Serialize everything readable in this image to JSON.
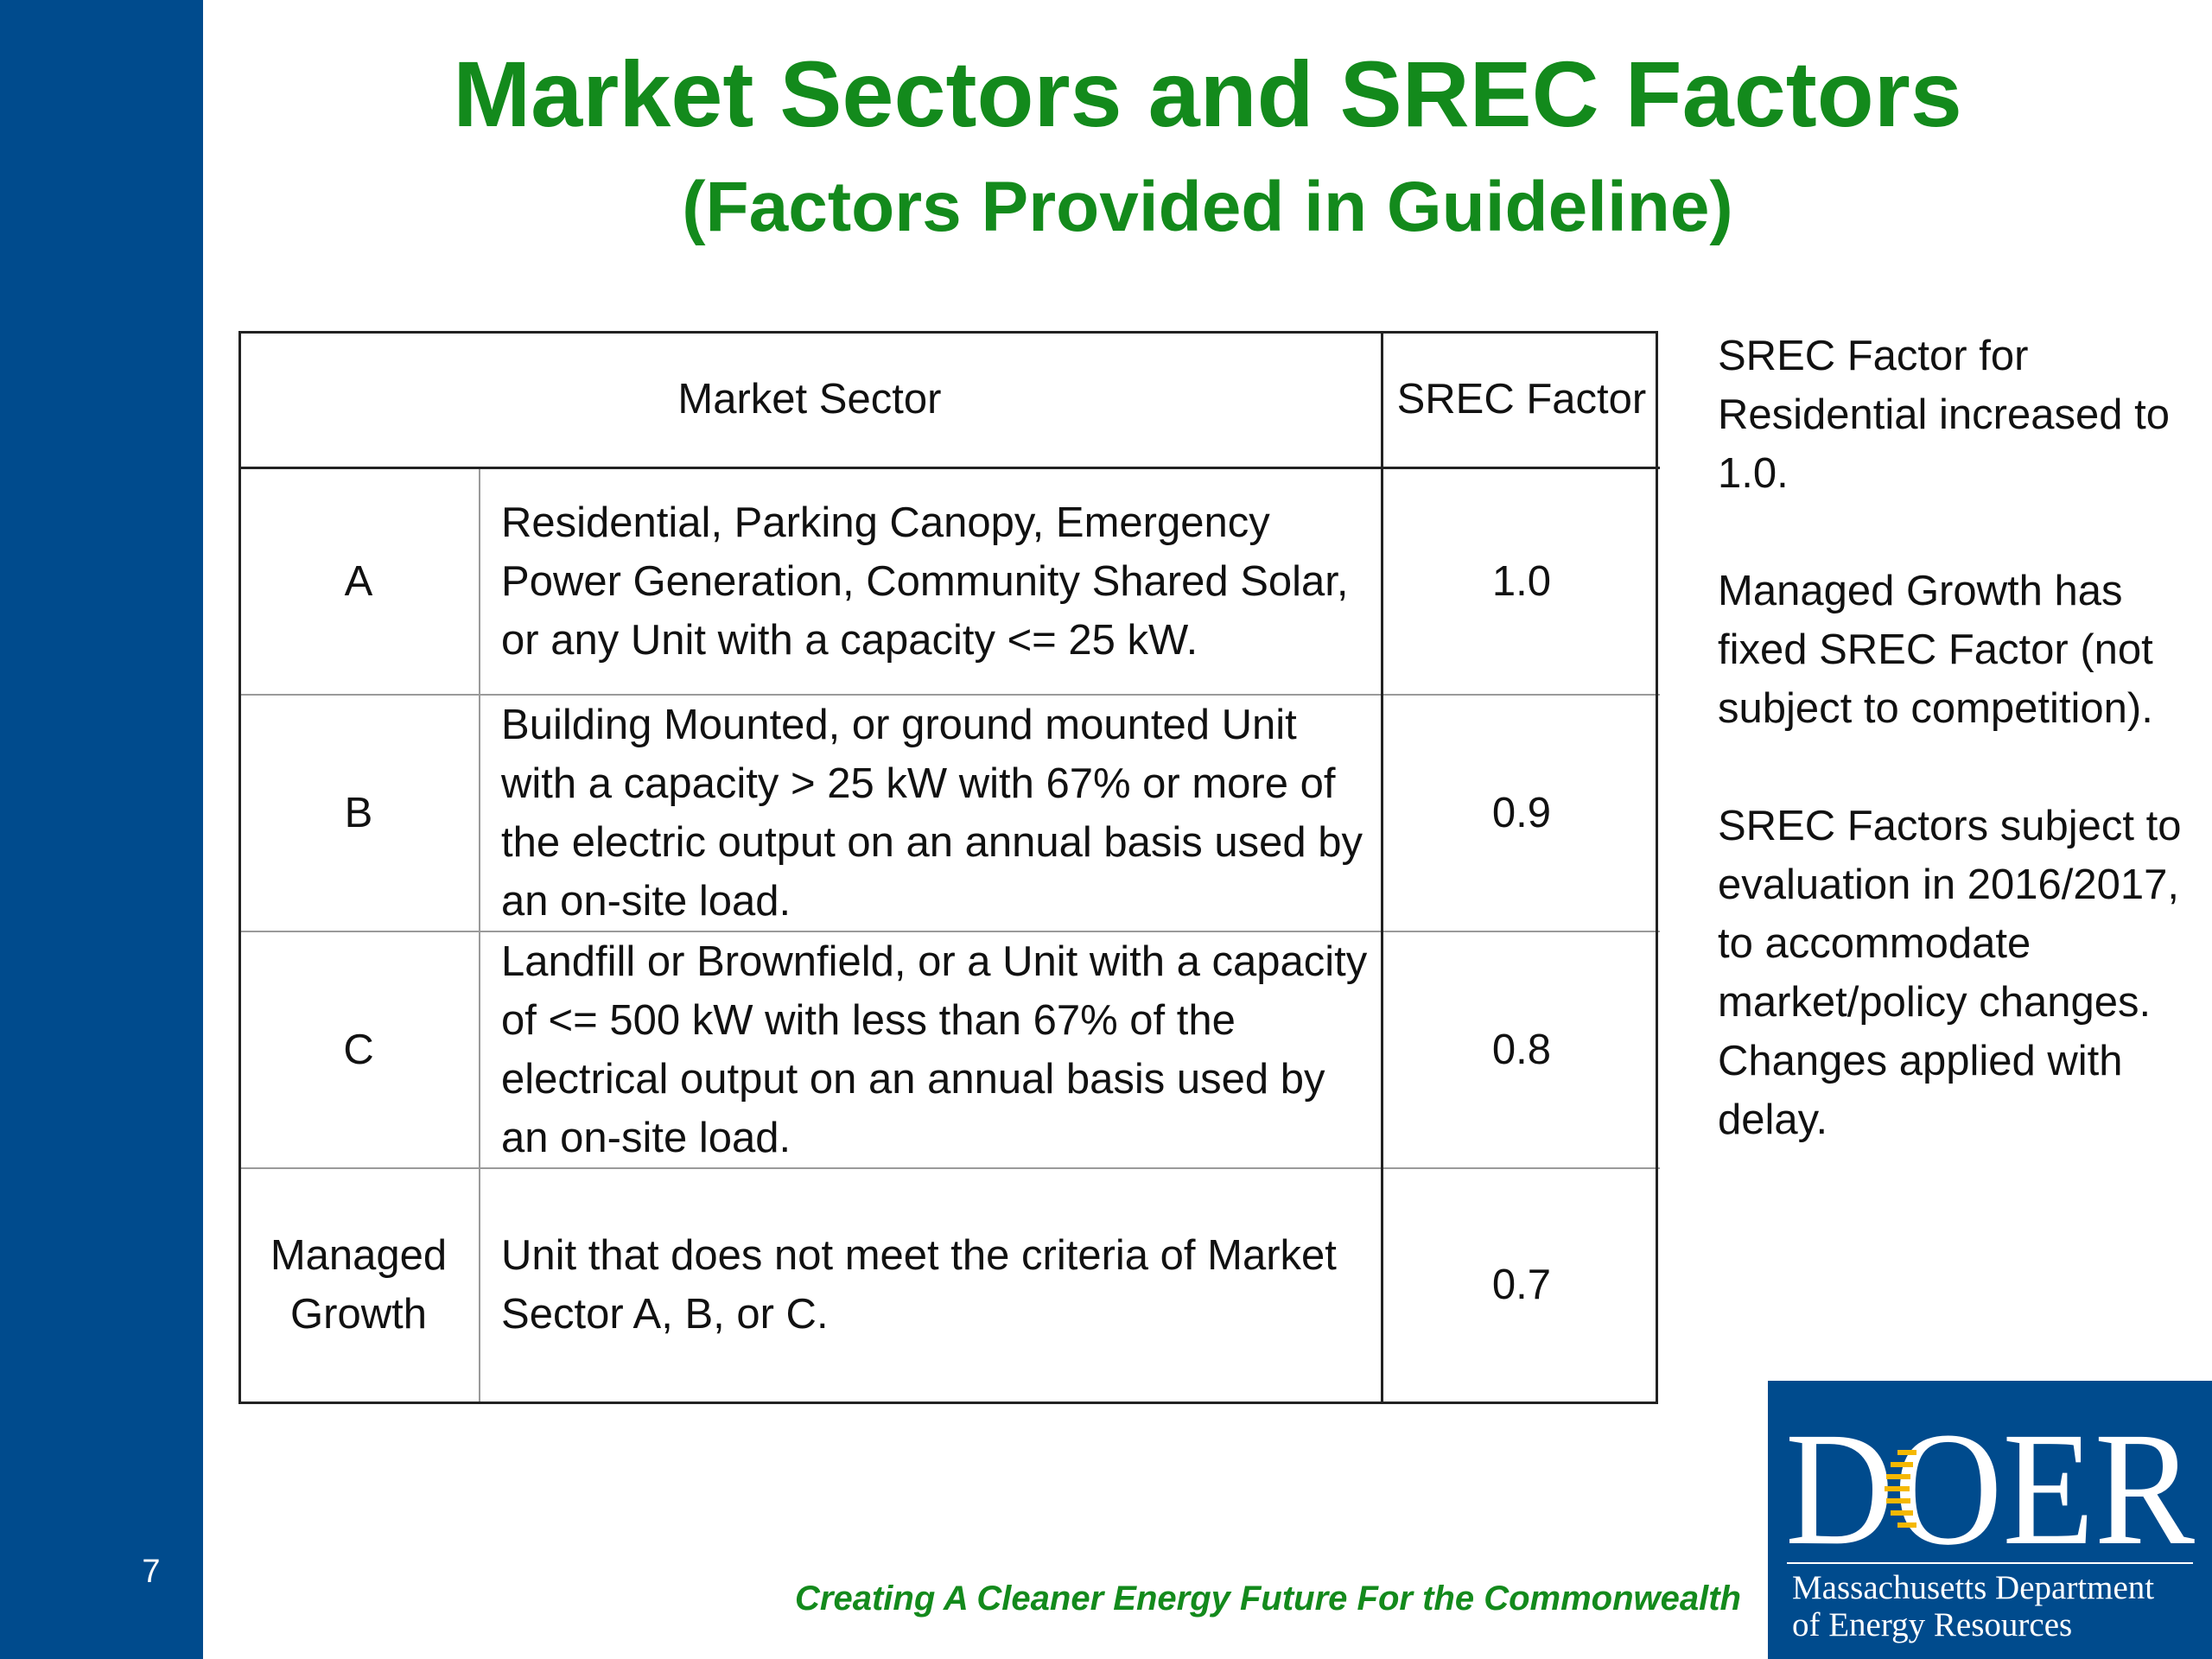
{
  "slide": {
    "number": "7",
    "title": "Market Sectors and SREC Factors",
    "subtitle": "(Factors Provided in Guideline)"
  },
  "table": {
    "headers": {
      "sector": "Market Sector",
      "factor": "SREC Factor"
    },
    "rows": [
      {
        "sector": "A",
        "description": "Residential, Parking Canopy, Emergency Power Generation, Community Shared Solar, or any Unit with a capacity <= 25 kW.",
        "factor": "1.0"
      },
      {
        "sector": "B",
        "description": "Building Mounted, or ground mounted Unit with a capacity > 25 kW with 67% or more of the electric output on an annual basis used by an on-site load.",
        "factor": "0.9"
      },
      {
        "sector": "C",
        "description": "Landfill or Brownfield, or a Unit with a capacity of <= 500 kW with less than 67% of the electrical output on an annual basis used by an on-site load.",
        "factor": "0.8"
      },
      {
        "sector": "Managed Growth",
        "description": "Unit that does not meet the criteria of Market Sector A, B, or C.",
        "factor": "0.7"
      }
    ]
  },
  "notes": [
    "SREC Factor for Residential increased to 1.0.",
    "Managed Growth has fixed SREC Factor (not subject to competition).",
    "SREC Factors subject to evaluation in 2016/2017, to accommodate market/policy changes.  Changes applied with delay."
  ],
  "footer": {
    "tagline": "Creating A Cleaner Energy Future For the Commonwealth"
  },
  "logo": {
    "wordmark": "DOER",
    "department": "Massachusetts Department\nof Energy Resources"
  },
  "colors": {
    "brand_blue": "#004b8d",
    "title_green": "#138a1c",
    "sun_yellow": "#f5b800"
  }
}
